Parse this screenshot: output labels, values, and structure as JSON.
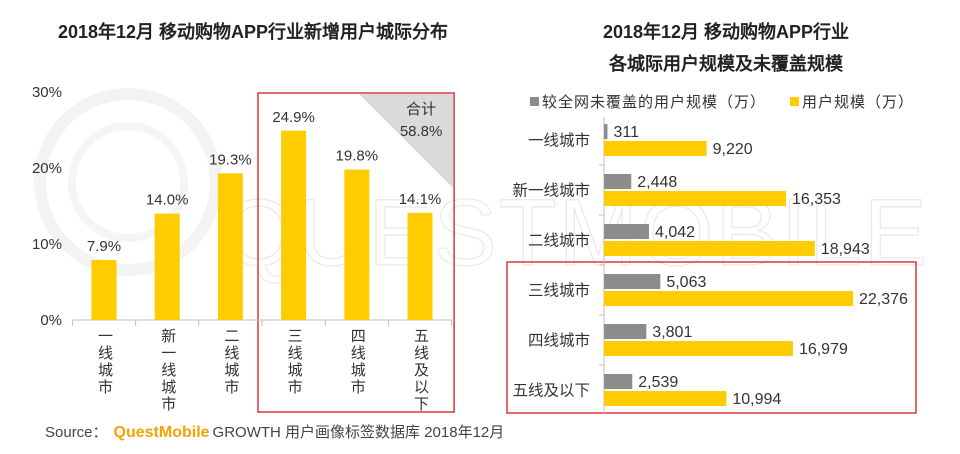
{
  "watermark": {
    "text": "QUESTMOBILE"
  },
  "colors": {
    "bar_yellow": "#FFCC00",
    "bar_gray": "#8C8C8C",
    "highlight_border": "#D8393C",
    "annotation_fill": "#DADADA",
    "brand_orange": "#F5A300"
  },
  "chart_data": [
    {
      "type": "bar",
      "horizontal": false,
      "title": "2018年12月 移动购物APP行业新增用户城际分布",
      "categories": [
        "一线城市",
        "新一线城市",
        "二线城市",
        "三线城市",
        "四线城市",
        "五线及以下"
      ],
      "values": [
        7.9,
        14.0,
        19.3,
        24.9,
        19.8,
        14.1
      ],
      "value_labels": [
        "7.9%",
        "14.0%",
        "19.3%",
        "24.9%",
        "19.8%",
        "14.1%"
      ],
      "yticks": [
        0,
        10,
        20,
        30
      ],
      "ytick_labels": [
        "0%",
        "10%",
        "20%",
        "30%"
      ],
      "ylim": [
        0,
        30
      ],
      "grid": false,
      "highlight_range": [
        3,
        5
      ],
      "annotation": {
        "label": "合计",
        "value": "58.8%"
      }
    },
    {
      "type": "bar",
      "horizontal": true,
      "title": [
        "2018年12月 移动购物APP行业",
        "各城际用户规模及未覆盖规模"
      ],
      "categories": [
        "一线城市",
        "新一线城市",
        "二线城市",
        "三线城市",
        "四线城市",
        "五线及以下"
      ],
      "series": [
        {
          "name": "较全网未覆盖的用户规模（万）",
          "color": "#8C8C8C",
          "values": [
            311,
            2448,
            4042,
            5063,
            3801,
            2539
          ],
          "labels": [
            "311",
            "2,448",
            "4,042",
            "5,063",
            "3,801",
            "2,539"
          ]
        },
        {
          "name": "用户规模（万）",
          "color": "#FFCC00",
          "values": [
            9220,
            16353,
            18943,
            22376,
            16979,
            10994
          ],
          "labels": [
            "9,220",
            "16,353",
            "18,943",
            "22,376",
            "16,979",
            "10,994"
          ]
        }
      ],
      "grid": false,
      "legend": "top",
      "highlight_range": [
        3,
        5
      ]
    }
  ],
  "source": {
    "prefix": "Source：",
    "brand": "QuestMobile",
    "suffix": "GROWTH 用户画像标签数据库 2018年12月"
  }
}
